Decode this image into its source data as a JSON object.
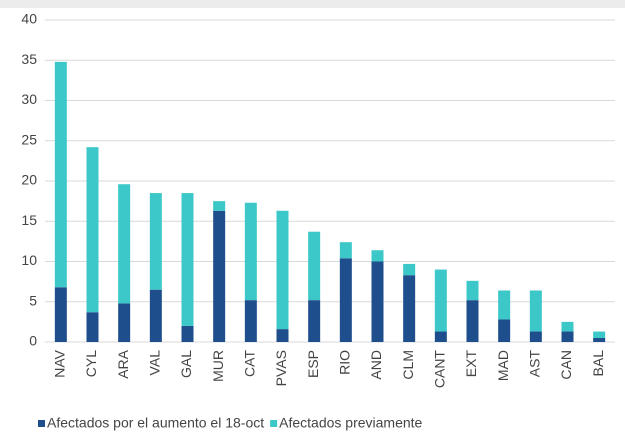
{
  "chart_data": {
    "type": "stacked_bar",
    "categories": [
      "NAV",
      "CYL",
      "ARA",
      "VAL",
      "GAL",
      "MUR",
      "CAT",
      "PVAS",
      "ESP",
      "RIO",
      "AND",
      "CLM",
      "CANT",
      "EXT",
      "MAD",
      "AST",
      "CAN",
      "BAL"
    ],
    "series": [
      {
        "name": "Afectados por el aumento el 18-oct",
        "color": "#1f4e8c",
        "values": [
          6.8,
          3.7,
          4.8,
          6.5,
          2.0,
          16.3,
          5.2,
          1.6,
          5.2,
          10.4,
          10.0,
          8.3,
          1.3,
          5.2,
          2.8,
          1.3,
          1.3,
          0.5
        ]
      },
      {
        "name": "Afectados previamente",
        "color": "#3cc8c8",
        "values": [
          28.0,
          20.5,
          14.8,
          12.0,
          16.5,
          1.2,
          12.1,
          14.7,
          8.5,
          2.0,
          1.4,
          1.4,
          7.7,
          2.4,
          3.6,
          5.1,
          1.2,
          0.8
        ]
      }
    ],
    "ylim": [
      0,
      40
    ],
    "yticks": [
      0,
      5,
      10,
      15,
      20,
      25,
      30,
      35,
      40
    ],
    "grid": true,
    "legend": "bottom"
  }
}
